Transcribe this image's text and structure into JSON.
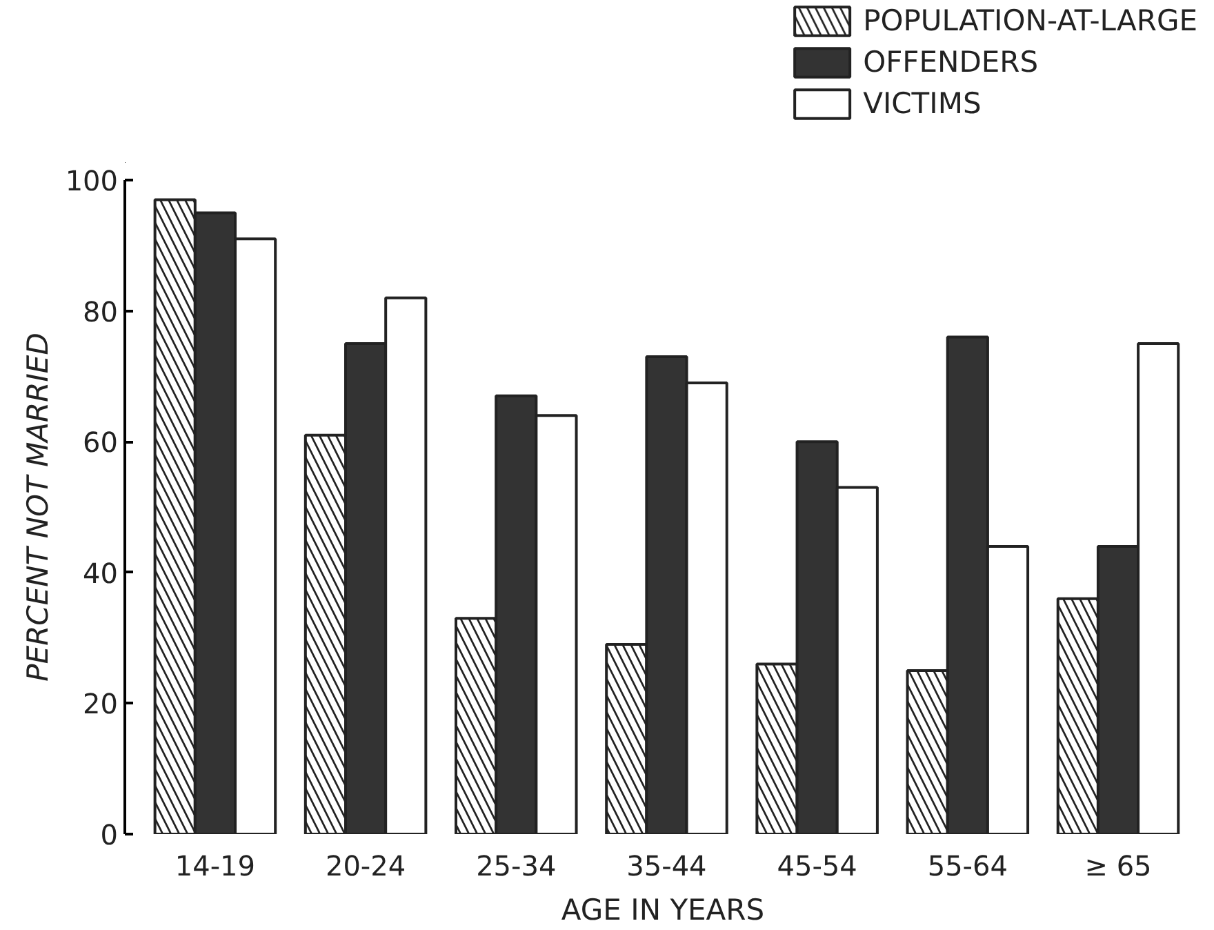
{
  "chart_data": {
    "type": "bar",
    "xlabel": "AGE IN YEARS",
    "ylabel": "PERCENT NOT MARRIED",
    "categories": [
      "14-19",
      "20-24",
      "25-34",
      "35-44",
      "45-54",
      "55-64",
      "≥ 65"
    ],
    "series": [
      {
        "name": "POPULATION-AT-LARGE",
        "color": "#222222",
        "values": [
          97,
          61,
          33,
          29,
          26,
          25,
          36
        ]
      },
      {
        "name": "OFFENDERS",
        "color": "#333333",
        "values": [
          95,
          75,
          67,
          73,
          60,
          76,
          44
        ]
      },
      {
        "name": "VICTIMS",
        "color": "#ffffff",
        "values": [
          91,
          82,
          64,
          69,
          53,
          44,
          75
        ]
      }
    ],
    "ylim": [
      0,
      100
    ],
    "yticks": [
      0,
      20,
      40,
      60,
      80,
      100
    ],
    "grid": false,
    "legend": "top right"
  }
}
